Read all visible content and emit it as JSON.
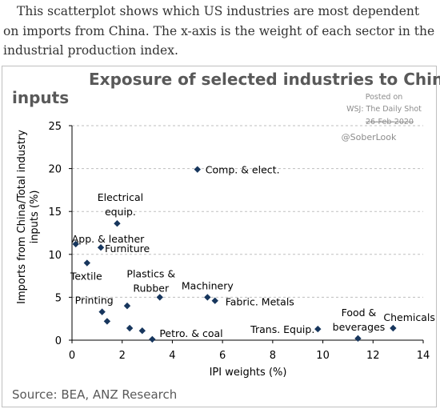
{
  "intro_text": "This scatterplot shows which US industries are most dependent on imports from China. The x-axis is the weight of each sector in the industrial production index.",
  "posted": {
    "line1": "Posted on",
    "line2": "WSJ: The Daily Shot",
    "line3": "26-Feb-2020"
  },
  "watermark": "@SoberLook",
  "source": "Source: BEA, ANZ Research",
  "colors": {
    "marker": "#17365d",
    "grid": "#bfbfbf",
    "title": "#595959"
  },
  "chart_data": {
    "type": "scatter",
    "title_line1": "Exposure of selected industries to China",
    "title_line2": "inputs",
    "xlabel": "IPI weights (%)",
    "ylabel_line1": "Imports from China/Total industry",
    "ylabel_line2": "inputs (%)",
    "xlim": [
      0,
      14
    ],
    "ylim": [
      0,
      25
    ],
    "xticks": [
      "0",
      "2",
      "4",
      "6",
      "8",
      "10",
      "12",
      "14"
    ],
    "yticks": [
      "0",
      "5",
      "10",
      "15",
      "20",
      "25"
    ],
    "grid": "horizontal dashed",
    "points": [
      {
        "x": 5.0,
        "y": 19.9,
        "label": [
          "Comp. & elect."
        ]
      },
      {
        "x": 1.8,
        "y": 13.6,
        "label": [
          "Electrical",
          "equip."
        ]
      },
      {
        "x": 0.15,
        "y": 11.2,
        "label": [
          "App. & leather"
        ]
      },
      {
        "x": 1.15,
        "y": 10.8,
        "label": [
          "Furniture"
        ]
      },
      {
        "x": 0.6,
        "y": 9.0,
        "label": [
          "Textile"
        ]
      },
      {
        "x": 3.5,
        "y": 5.0,
        "label": [
          "Plastics &",
          "Rubber"
        ]
      },
      {
        "x": 5.4,
        "y": 5.0,
        "label": [
          "Machinery"
        ]
      },
      {
        "x": 5.7,
        "y": 4.6,
        "label": [
          "Fabric. Metals"
        ]
      },
      {
        "x": 2.2,
        "y": 4.0,
        "label": []
      },
      {
        "x": 1.2,
        "y": 3.3,
        "label": [
          "Printing"
        ]
      },
      {
        "x": 1.4,
        "y": 2.2,
        "label": []
      },
      {
        "x": 2.3,
        "y": 1.4,
        "label": []
      },
      {
        "x": 2.8,
        "y": 1.1,
        "label": []
      },
      {
        "x": 3.2,
        "y": 0.1,
        "label": [
          "Petro. & coal"
        ]
      },
      {
        "x": 9.8,
        "y": 1.3,
        "label": [
          "Trans. Equip."
        ]
      },
      {
        "x": 11.4,
        "y": 0.2,
        "label": [
          "Food &",
          "beverages"
        ]
      },
      {
        "x": 12.8,
        "y": 1.4,
        "label": [
          "Chemicals"
        ]
      }
    ]
  }
}
